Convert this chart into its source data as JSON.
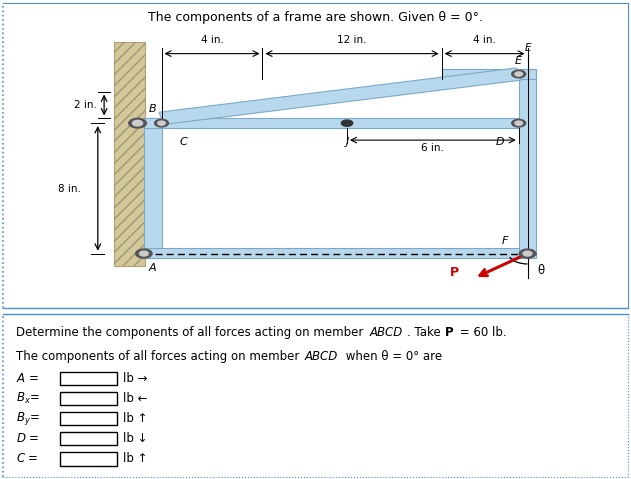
{
  "title": "The components of a frame are shown. Given θ = 0°.",
  "bg_color": "#ffffff",
  "border_color": "#4a90d9",
  "member_color": "#b8d8ee",
  "member_edge": "#7aaac8",
  "wall_color": "#d4c89a",
  "wall_edge": "#b0a070",
  "arrow_color": "#cc0000",
  "dim_color": "#000000",
  "q_text": "Determine the components of all forces acting on member ",
  "q_italic": "ABCD",
  "q_end": ". Take ",
  "q_bold": "P",
  "q_final": " = 60 lb.",
  "a_text": "The components of all forces acting on member ",
  "a_italic": "ABCD",
  "a_end": " when θ = 0° are"
}
